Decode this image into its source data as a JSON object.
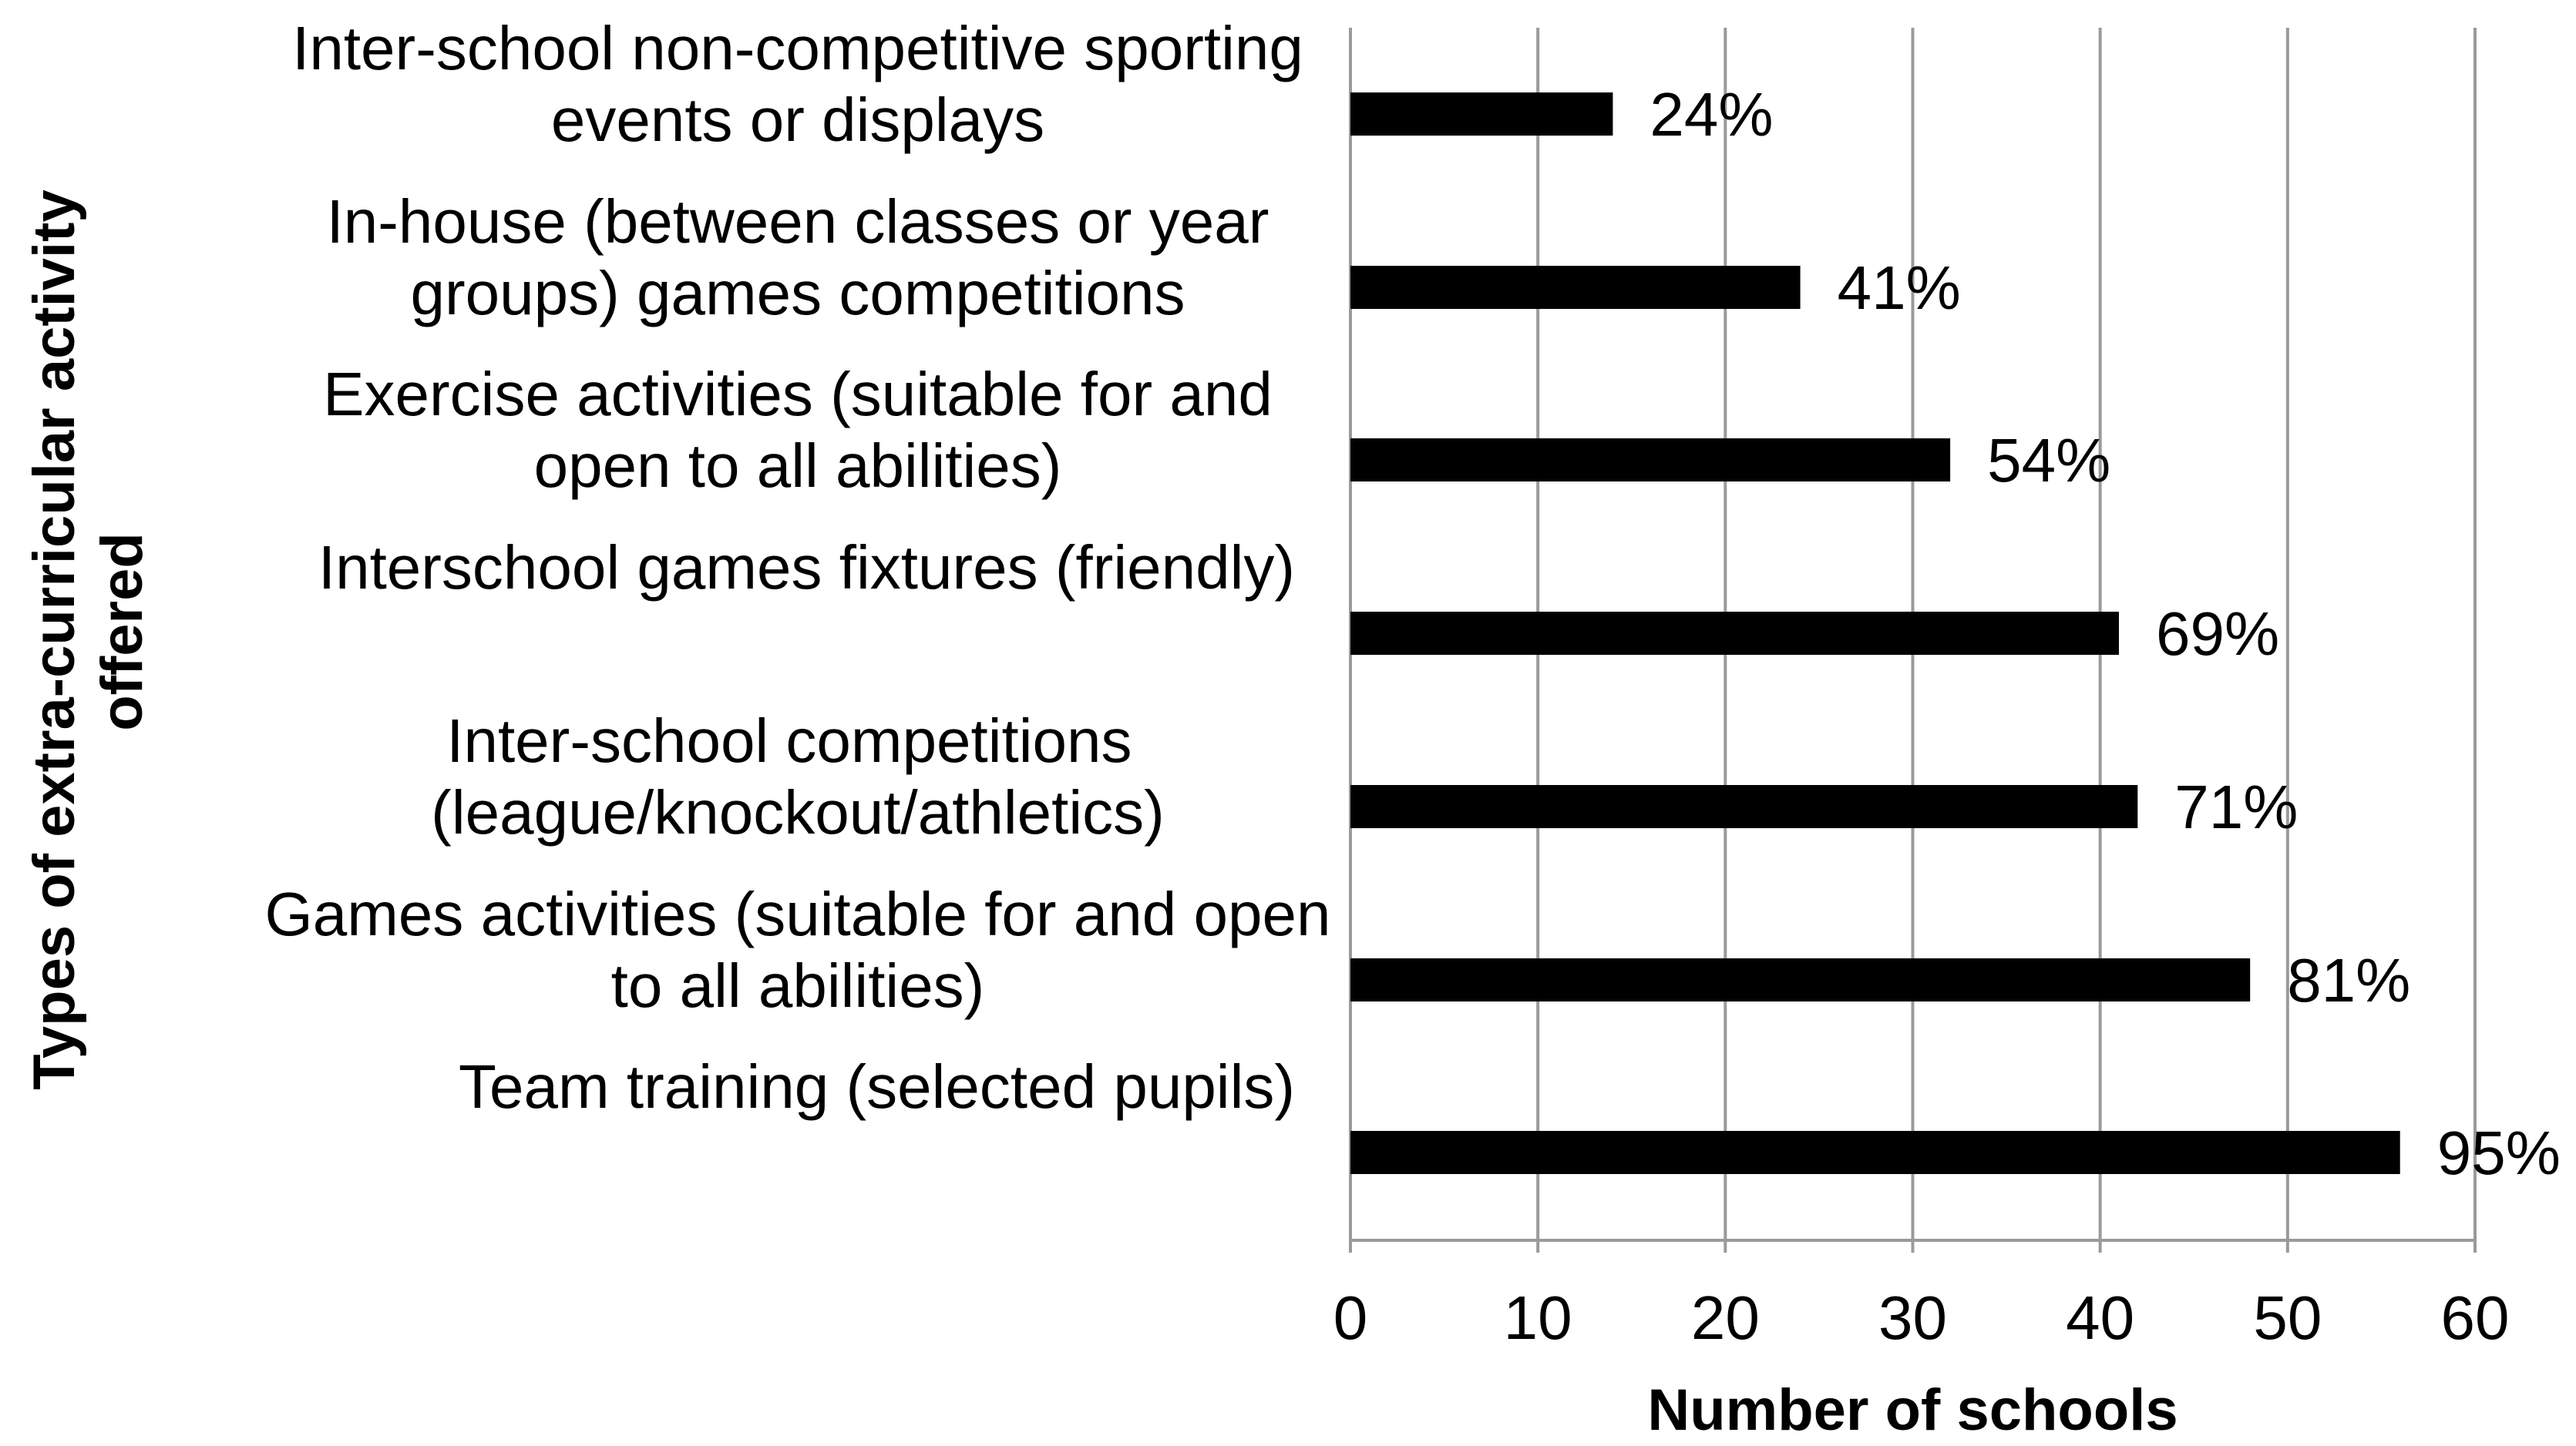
{
  "chart_data": {
    "type": "bar",
    "orientation": "horizontal",
    "categories": [
      [
        "Inter-school non-competitive sporting",
        "events or displays"
      ],
      [
        "In-house (between classes or year",
        "groups) games competitions"
      ],
      [
        "Exercise activities (suitable for and",
        "open to all abilities)"
      ],
      [
        "Interschool games fixtures (friendly)"
      ],
      [
        "Inter-school competitions ",
        "(league/knockout/athletics)"
      ],
      [
        "Games activities (suitable for and open",
        "to all abilities)"
      ],
      [
        "Team training (selected pupils)"
      ]
    ],
    "values": [
      14,
      24,
      32,
      41,
      42,
      48,
      56
    ],
    "data_labels": [
      "24%",
      "41%",
      "54%",
      "69%",
      "71%",
      "81%",
      "95%"
    ],
    "xlabel": "Number of schools",
    "ylabel": "Types of extra-curricular activity offered",
    "ylabel_lines": [
      "Types of extra-curricular activity",
      "offered"
    ],
    "xlim": [
      0,
      60
    ],
    "xticks": [
      "0",
      "10",
      "20",
      "30",
      "40",
      "50",
      "60"
    ],
    "grid": "vertical",
    "legend": "none",
    "colors": {
      "bar": "#000000",
      "grid": "#9a9a9a",
      "text": "#000000"
    }
  }
}
